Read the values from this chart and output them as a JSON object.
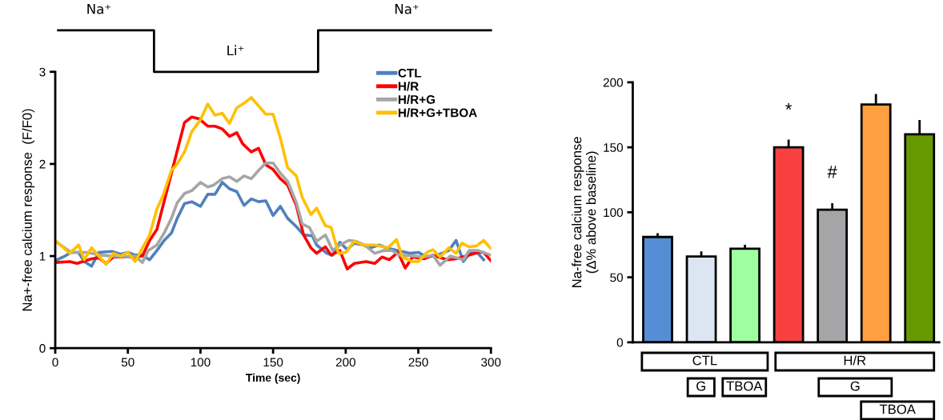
{
  "chart_data": [
    {
      "type": "line",
      "xlabel": "Time (sec)",
      "ylabel": "Na+-free calcium response  (F/F0)",
      "xlim": [
        0,
        300
      ],
      "xticks": [
        0,
        50,
        100,
        150,
        200,
        250,
        300
      ],
      "ylim": [
        0,
        3
      ],
      "yticks": [
        0,
        1,
        2,
        3
      ],
      "grid": false,
      "legend": "top right",
      "marker": "none",
      "line_style": "solid",
      "annotations": [
        "Na⁺",
        "Li⁺",
        "Na⁺"
      ],
      "series": [
        {
          "name": "CTL",
          "color": "#4f81bd",
          "x": [
            0,
            5.5,
            11,
            16,
            20,
            25,
            30,
            39,
            45,
            50,
            55,
            60,
            65,
            70,
            75,
            80,
            84,
            89,
            94,
            100,
            105,
            110,
            115,
            120,
            125,
            130,
            135,
            140,
            145,
            150,
            155,
            160,
            166,
            171,
            177,
            180,
            187,
            191,
            196,
            201,
            206,
            212,
            217,
            223,
            228,
            236,
            244,
            250,
            256,
            263,
            271,
            276,
            281,
            286,
            291,
            295
          ],
          "values": [
            0.95,
            0.99,
            1.04,
            1.04,
            0.94,
            0.89,
            1.04,
            1.05,
            1.02,
            1.04,
            1.01,
            1.01,
            0.96,
            1.06,
            1.17,
            1.25,
            1.41,
            1.57,
            1.59,
            1.54,
            1.67,
            1.67,
            1.8,
            1.73,
            1.7,
            1.55,
            1.62,
            1.59,
            1.6,
            1.44,
            1.54,
            1.41,
            1.32,
            1.23,
            1.22,
            1.12,
            1.03,
            1.01,
            1.15,
            1.07,
            1.14,
            1.12,
            1.09,
            1.12,
            1.09,
            1.06,
            1.03,
            1.04,
            0.99,
            1.01,
            1.06,
            1.17,
            0.94,
            1.04,
            1.03,
            0.96
          ]
        },
        {
          "name": "H/R",
          "color": "#ff0000",
          "x": [
            0,
            10,
            15,
            25,
            30,
            35,
            40,
            55,
            60,
            65,
            70,
            81,
            89,
            94,
            99,
            105,
            110,
            115,
            120,
            125,
            129,
            135,
            140,
            145,
            150,
            155,
            160,
            166,
            171,
            176,
            180,
            186,
            190,
            196,
            201,
            206,
            214,
            220,
            225,
            230,
            236,
            241,
            246,
            254,
            260,
            270,
            276,
            283,
            291,
            295,
            300
          ],
          "values": [
            0.93,
            0.94,
            0.92,
            0.97,
            0.98,
            0.92,
            0.99,
            0.99,
            1.0,
            1.17,
            1.29,
            1.96,
            2.45,
            2.51,
            2.49,
            2.41,
            2.41,
            2.38,
            2.3,
            2.34,
            2.22,
            2.13,
            2.17,
            1.99,
            1.94,
            1.84,
            1.77,
            1.55,
            1.23,
            1.09,
            1.03,
            1.1,
            1.01,
            1.06,
            0.86,
            0.92,
            0.94,
            0.92,
            0.99,
            0.96,
            1.04,
            0.87,
            0.99,
            0.97,
            1.01,
            0.96,
            0.97,
            1.0,
            1.04,
            1.04,
            0.95
          ]
        },
        {
          "name": "H/R+G",
          "color": "#a6a6a6",
          "x": [
            0,
            5.5,
            11,
            22,
            31,
            40,
            50,
            55,
            60,
            64,
            70,
            75,
            80,
            84,
            89,
            94,
            100,
            105,
            109,
            115,
            120,
            125,
            130,
            135,
            140,
            145,
            150,
            155,
            160,
            166,
            170,
            175,
            180,
            186,
            191,
            196,
            202,
            207,
            213,
            220,
            226,
            232,
            237,
            247,
            254,
            260,
            265,
            272,
            281,
            285,
            291,
            300
          ],
          "values": [
            1.16,
            1.1,
            1.04,
            1.04,
            1.01,
            1.0,
            0.99,
            1.0,
            0.93,
            1.06,
            1.12,
            1.25,
            1.41,
            1.58,
            1.68,
            1.71,
            1.8,
            1.75,
            1.77,
            1.84,
            1.86,
            1.81,
            1.87,
            1.84,
            1.93,
            2.01,
            2.01,
            1.9,
            1.81,
            1.58,
            1.35,
            1.31,
            1.16,
            1.23,
            1.06,
            1.12,
            1.17,
            1.16,
            1.12,
            1.03,
            1.06,
            1.06,
            1.01,
            1.0,
            0.99,
            1.01,
            0.9,
            1.0,
            0.96,
            1.06,
            1.06,
            1.01
          ]
        },
        {
          "name": "H/R+G+TBOA",
          "color": "#ffc000",
          "x": [
            0,
            10,
            16,
            20,
            25,
            35,
            40,
            45,
            50,
            55,
            65,
            70,
            74,
            80,
            84,
            89,
            94,
            100,
            105,
            110,
            115,
            120,
            125,
            130,
            135,
            140,
            145,
            150,
            155,
            160,
            166,
            170,
            176,
            180,
            186,
            190,
            195,
            200,
            206,
            212,
            220,
            229,
            235,
            239,
            246,
            250,
            256,
            260,
            265,
            271,
            276,
            280,
            285,
            290,
            295,
            300
          ],
          "values": [
            1.17,
            1.03,
            1.12,
            0.96,
            1.09,
            0.91,
            1.03,
            1.0,
            1.04,
            0.94,
            1.23,
            1.51,
            1.65,
            1.93,
            2.0,
            2.13,
            2.35,
            2.48,
            2.65,
            2.53,
            2.55,
            2.44,
            2.61,
            2.66,
            2.72,
            2.63,
            2.54,
            2.54,
            2.28,
            1.96,
            1.87,
            1.64,
            1.45,
            1.52,
            1.33,
            1.31,
            1.03,
            1.04,
            1.16,
            1.12,
            1.12,
            1.09,
            1.18,
            0.99,
            0.94,
            0.94,
            1.04,
            1.07,
            0.99,
            1.09,
            1.03,
            1.14,
            1.1,
            1.11,
            1.17,
            1.08
          ]
        }
      ]
    },
    {
      "type": "bar",
      "ylabel": "Na-free calcium response\n(Δ% above baseline)",
      "ylim": [
        0,
        200
      ],
      "yticks": [
        0,
        50,
        100,
        150,
        200
      ],
      "grid": false,
      "legend": false,
      "categories": [
        null,
        null,
        null,
        null,
        null,
        null,
        null
      ],
      "values": [
        81,
        66,
        72,
        150,
        102,
        183,
        160
      ],
      "errors": [
        3,
        4,
        3,
        6,
        5,
        8,
        11
      ],
      "colors": [
        "#558ed5",
        "#dce6f2",
        "#a0ffa0",
        "#f94040",
        "#a5a5a8",
        "#ffa040",
        "#669900"
      ],
      "annotations": [
        "*",
        "#",
        "CTL",
        "H/R",
        "G",
        "TBOA",
        "G",
        "TBOA"
      ]
    }
  ]
}
